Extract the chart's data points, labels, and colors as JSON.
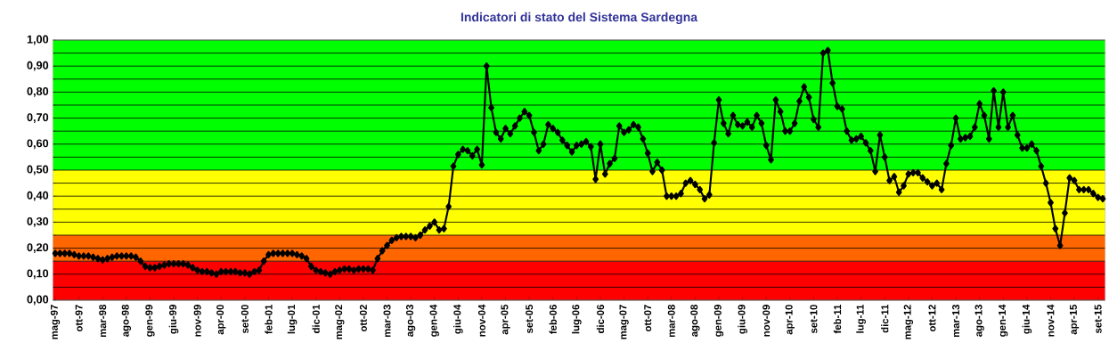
{
  "chart_data": {
    "type": "line",
    "title": "Indicatori di stato del Sistema Sardegna",
    "categories": [
      "mag-97",
      null,
      null,
      null,
      null,
      "ott-97",
      null,
      null,
      null,
      null,
      "mar-98",
      null,
      null,
      null,
      null,
      "ago-98",
      null,
      null,
      null,
      null,
      "gen-99",
      null,
      null,
      null,
      null,
      "giu-99",
      null,
      null,
      null,
      null,
      "nov-99",
      null,
      null,
      null,
      null,
      "apr-00",
      null,
      null,
      null,
      null,
      "set-00",
      null,
      null,
      null,
      null,
      "feb-01",
      null,
      null,
      null,
      null,
      "lug-01",
      null,
      null,
      null,
      null,
      "dic-01",
      null,
      null,
      null,
      null,
      "mag-02",
      null,
      null,
      null,
      null,
      "ott-02",
      null,
      null,
      null,
      null,
      "mar-03",
      null,
      null,
      null,
      null,
      "ago-03",
      null,
      null,
      null,
      null,
      "gen-04",
      null,
      null,
      null,
      null,
      "giu-04",
      null,
      null,
      null,
      null,
      "nov-04",
      null,
      null,
      null,
      null,
      "apr-05",
      null,
      null,
      null,
      null,
      "set-05",
      null,
      null,
      null,
      null,
      "feb-06",
      null,
      null,
      null,
      null,
      "lug-06",
      null,
      null,
      null,
      null,
      "dic-06",
      null,
      null,
      null,
      null,
      "mag-07",
      null,
      null,
      null,
      null,
      "ott-07",
      null,
      null,
      null,
      null,
      "mar-08",
      null,
      null,
      null,
      null,
      "ago-08",
      null,
      null,
      null,
      null,
      "gen-09",
      null,
      null,
      null,
      null,
      "giu-09",
      null,
      null,
      null,
      null,
      "nov-09",
      null,
      null,
      null,
      null,
      "apr-10",
      null,
      null,
      null,
      null,
      "set-10",
      null,
      null,
      null,
      null,
      "feb-11",
      null,
      null,
      null,
      null,
      "lug-11",
      null,
      null,
      null,
      null,
      "dic-11",
      null,
      null,
      null,
      null,
      "mag-12",
      null,
      null,
      null,
      null,
      "ott-12",
      null,
      null,
      null,
      null,
      "mar-13",
      null,
      null,
      null,
      null,
      "ago-13",
      null,
      null,
      null,
      null,
      "gen-14",
      null,
      null,
      null,
      null,
      "giu-14",
      null,
      null,
      null,
      null,
      "nov-14",
      null,
      null,
      null,
      null,
      "apr-15",
      null,
      null,
      null,
      null,
      "set-15",
      null
    ],
    "series": [
      {
        "color": "#000000",
        "values": [
          0.18,
          0.18,
          0.18,
          0.18,
          0.175,
          0.17,
          0.17,
          0.17,
          0.165,
          0.16,
          0.155,
          0.16,
          0.165,
          0.17,
          0.17,
          0.17,
          0.17,
          0.165,
          0.15,
          0.13,
          0.125,
          0.125,
          0.13,
          0.135,
          0.14,
          0.14,
          0.14,
          0.14,
          0.135,
          0.125,
          0.115,
          0.11,
          0.11,
          0.105,
          0.1,
          0.11,
          0.11,
          0.11,
          0.11,
          0.105,
          0.105,
          0.1,
          0.11,
          0.115,
          0.15,
          0.175,
          0.18,
          0.18,
          0.18,
          0.18,
          0.18,
          0.175,
          0.17,
          0.16,
          0.13,
          0.115,
          0.11,
          0.105,
          0.1,
          0.11,
          0.115,
          0.12,
          0.12,
          0.115,
          0.12,
          0.12,
          0.12,
          0.115,
          0.16,
          0.19,
          0.21,
          0.23,
          0.24,
          0.245,
          0.245,
          0.245,
          0.24,
          0.25,
          0.27,
          0.285,
          0.3,
          0.27,
          0.275,
          0.36,
          0.515,
          0.56,
          0.58,
          0.575,
          0.555,
          0.58,
          0.52,
          0.9,
          0.74,
          0.645,
          0.62,
          0.66,
          0.64,
          0.67,
          0.7,
          0.725,
          0.71,
          0.645,
          0.575,
          0.6,
          0.675,
          0.66,
          0.645,
          0.615,
          0.595,
          0.57,
          0.595,
          0.6,
          0.61,
          0.59,
          0.465,
          0.6,
          0.485,
          0.525,
          0.545,
          0.67,
          0.645,
          0.655,
          0.675,
          0.665,
          0.62,
          0.565,
          0.495,
          0.53,
          0.5,
          0.4,
          0.4,
          0.4,
          0.41,
          0.45,
          0.46,
          0.445,
          0.425,
          0.39,
          0.405,
          0.605,
          0.77,
          0.68,
          0.64,
          0.71,
          0.675,
          0.67,
          0.685,
          0.665,
          0.71,
          0.68,
          0.595,
          0.54,
          0.77,
          0.725,
          0.65,
          0.65,
          0.68,
          0.765,
          0.82,
          0.78,
          0.695,
          0.665,
          0.95,
          0.96,
          0.835,
          0.745,
          0.735,
          0.65,
          0.615,
          0.62,
          0.63,
          0.605,
          0.575,
          0.495,
          0.635,
          0.55,
          0.46,
          0.475,
          0.415,
          0.44,
          0.485,
          0.49,
          0.49,
          0.47,
          0.455,
          0.44,
          0.45,
          0.425,
          0.525,
          0.595,
          0.7,
          0.62,
          0.625,
          0.63,
          0.665,
          0.755,
          0.71,
          0.62,
          0.805,
          0.665,
          0.8,
          0.665,
          0.71,
          0.635,
          0.585,
          0.585,
          0.6,
          0.575,
          0.515,
          0.45,
          0.375,
          0.275,
          0.21,
          0.335,
          0.47,
          0.46,
          0.425,
          0.425,
          0.425,
          0.41,
          0.395,
          0.39
        ]
      }
    ],
    "ylim": [
      0,
      1
    ],
    "yticks": [
      {
        "value": 0,
        "label": "0,00"
      },
      {
        "value": 0.05,
        "label": null
      },
      {
        "value": 0.1,
        "label": "0,10"
      },
      {
        "value": 0.15,
        "label": null
      },
      {
        "value": 0.2,
        "label": "0,20"
      },
      {
        "value": 0.25,
        "label": null
      },
      {
        "value": 0.3,
        "label": "0,30"
      },
      {
        "value": 0.35,
        "label": null
      },
      {
        "value": 0.4,
        "label": "0,40"
      },
      {
        "value": 0.45,
        "label": null
      },
      {
        "value": 0.5,
        "label": "0,50"
      },
      {
        "value": 0.55,
        "label": null
      },
      {
        "value": 0.6,
        "label": "0,60"
      },
      {
        "value": 0.65,
        "label": null
      },
      {
        "value": 0.7,
        "label": "0,70"
      },
      {
        "value": 0.75,
        "label": null
      },
      {
        "value": 0.8,
        "label": "0,80"
      },
      {
        "value": 0.85,
        "label": null
      },
      {
        "value": 0.9,
        "label": "0,90"
      },
      {
        "value": 0.95,
        "label": null
      },
      {
        "value": 1,
        "label": "1,00"
      }
    ],
    "bands": [
      {
        "axis": "y",
        "from": 0,
        "to": 0.15,
        "color": "#ff0000"
      },
      {
        "axis": "y",
        "from": 0.15,
        "to": 0.25,
        "color": "#ff6600"
      },
      {
        "axis": "y",
        "from": 0.25,
        "to": 0.5,
        "color": "#ffff00"
      },
      {
        "axis": "y",
        "from": 0.5,
        "to": 1,
        "color": "#00ff00"
      }
    ],
    "grid": "y",
    "marker": "diamond",
    "line_style": "solid"
  }
}
